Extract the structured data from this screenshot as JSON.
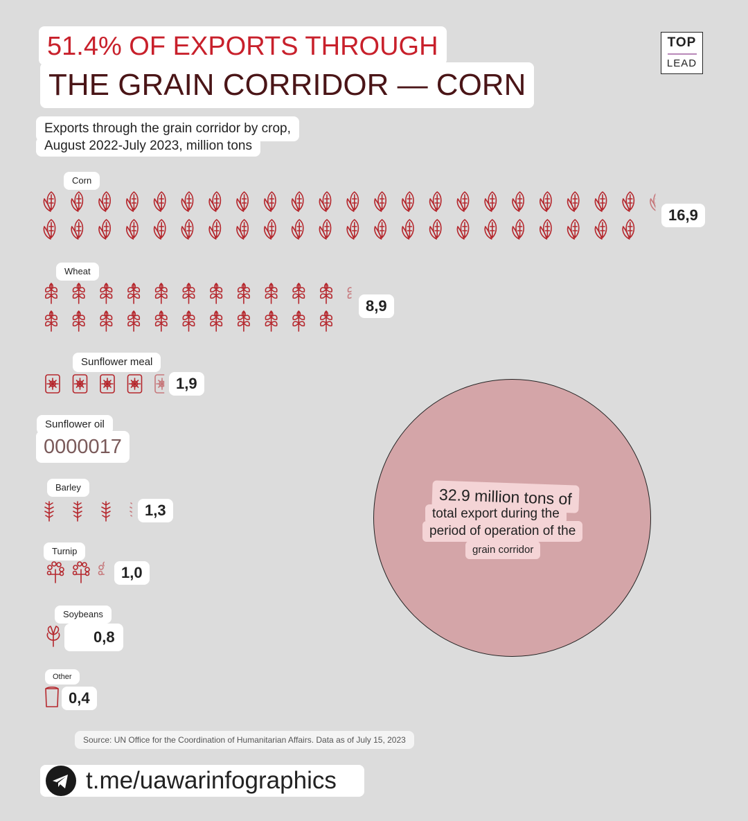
{
  "header": {
    "title_line1": "51.4% OF EXPORTS THROUGH",
    "title_line2": "THE GRAIN CORRIDOR — CORN",
    "subtitle_line1": "Exports through the grain corridor by crop,",
    "subtitle_line2": "August 2022-July 2023, million tons"
  },
  "logo": {
    "top": "TOP",
    "bottom": "LEAD"
  },
  "colors": {
    "icon": "#b5272d",
    "circle": "#d4a5a8",
    "background": "#dcdcdc"
  },
  "chart_data": {
    "type": "pictogram",
    "unit": "million tons",
    "categories": [
      {
        "name": "Corn",
        "value": 16.9,
        "value_label": "16,9",
        "icon": "corn-icon"
      },
      {
        "name": "Wheat",
        "value": 8.9,
        "value_label": "8,9",
        "icon": "wheat-icon"
      },
      {
        "name": "Sunflower meal",
        "value": 1.9,
        "value_label": "1,9",
        "icon": "sack-icon"
      },
      {
        "name": "Sunflower oil",
        "value_label": "0000017"
      },
      {
        "name": "Barley",
        "value": 1.3,
        "value_label": "1,3",
        "icon": "barley-icon"
      },
      {
        "name": "Turnip",
        "value": 1.0,
        "value_label": "1,0",
        "icon": "turnip-icon"
      },
      {
        "name": "Soybeans",
        "value": 0.8,
        "value_label": "0,8",
        "icon": "soy-icon"
      },
      {
        "name": "Other",
        "value": 0.4,
        "value_label": "0,4",
        "icon": "bag-icon"
      }
    ]
  },
  "total": {
    "line1": "32.9 million tons of",
    "line2": "total export during the",
    "line3": "period of operation of the",
    "line4": "grain corridor"
  },
  "source": "Source: UN Office for the Coordination of Humanitarian Affairs. Data as of July 15, 2023",
  "footer": {
    "channel": "t.me/uawarinfographics",
    "icon": "telegram-icon"
  }
}
